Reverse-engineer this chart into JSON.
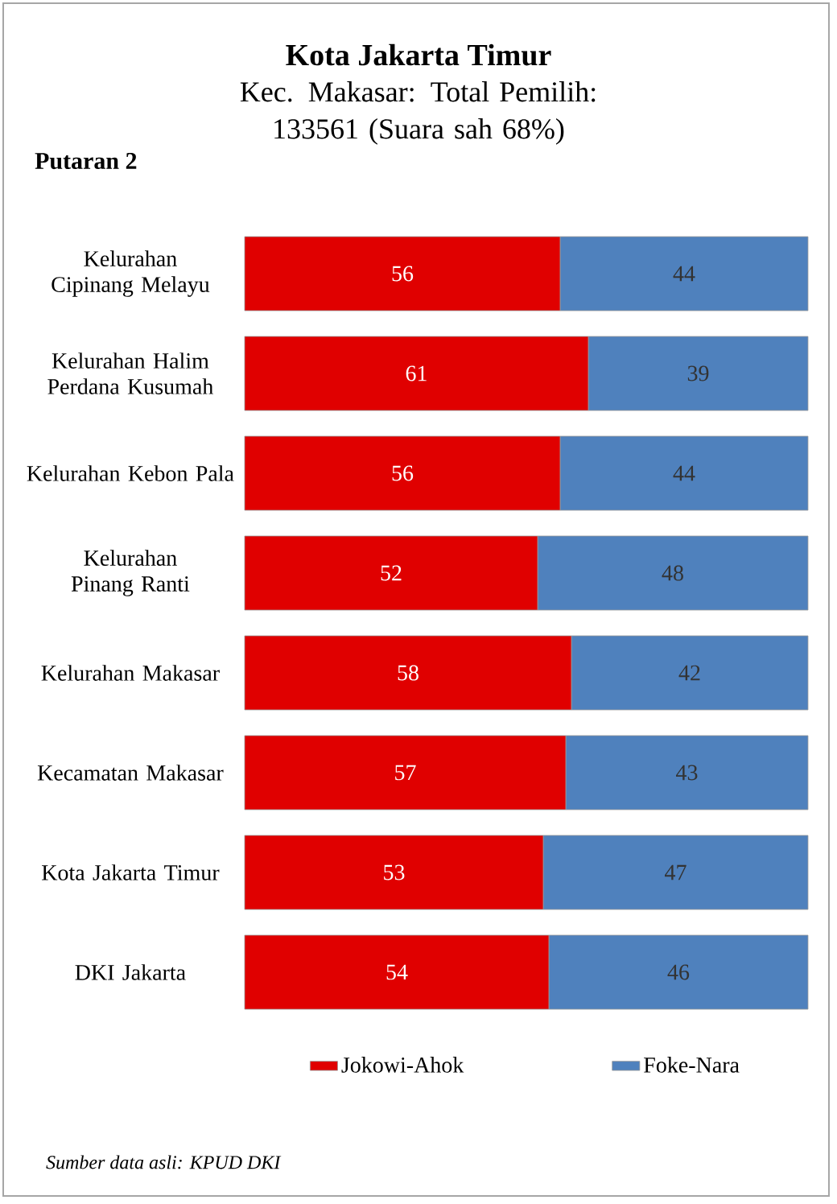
{
  "chart_data": {
    "type": "bar",
    "orientation": "horizontal",
    "stacked": true,
    "data_labels": true,
    "legend": "bottom",
    "title": "Kota Jakarta Timur",
    "subtitle": "Kec. Makasar: Total Pemilih: 133561 (Suara sah 68%)",
    "annotations": [
      "Putaran 2",
      "Sumber data asli: KPUD DKI"
    ],
    "categories": [
      "Kelurahan Cipinang Melayu",
      "Kelurahan Halim Perdana Kusumah",
      "Kelurahan Kebon Pala",
      "Kelurahan Pinang Ranti",
      "Kelurahan Makasar",
      "Kecamatan Makasar",
      "Kota Jakarta Timur",
      "DKI Jakarta"
    ],
    "series": [
      {
        "name": "Jokowi-Ahok",
        "color": "#e00000",
        "values": [
          56,
          61,
          56,
          52,
          58,
          57,
          53,
          54
        ]
      },
      {
        "name": "Foke-Nara",
        "color": "#4f81bd",
        "values": [
          44,
          39,
          44,
          48,
          42,
          43,
          47,
          46
        ]
      }
    ]
  }
}
